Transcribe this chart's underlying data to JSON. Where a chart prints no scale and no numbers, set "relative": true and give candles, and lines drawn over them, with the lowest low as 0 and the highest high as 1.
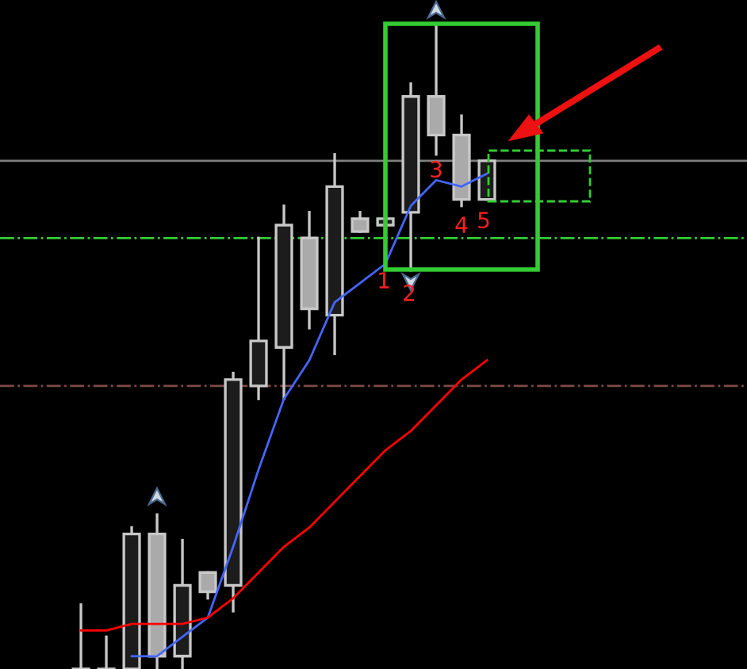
{
  "chart_data": {
    "type": "candlestick",
    "relative": true,
    "categories": [
      null,
      null,
      null,
      null,
      null,
      null,
      null,
      null,
      null,
      null,
      null,
      null,
      null,
      null,
      null,
      null,
      null
    ],
    "ohlc": [
      [
        0,
        0.1,
        0,
        0
      ],
      [
        0,
        0.05,
        0,
        0
      ],
      [
        0,
        0.22,
        0,
        0.21
      ],
      [
        0.21,
        0.24,
        0,
        0.02
      ],
      [
        0.02,
        0.2,
        0,
        0.13
      ],
      [
        0.15,
        0.15,
        0.11,
        0.12
      ],
      [
        0.13,
        0.46,
        0.09,
        0.45
      ],
      [
        0.44,
        0.67,
        0.42,
        0.51
      ],
      [
        0.5,
        0.72,
        0.42,
        0.69
      ],
      [
        0.67,
        0.71,
        0.53,
        0.56
      ],
      [
        0.55,
        0.8,
        0.49,
        0.75
      ],
      [
        0.7,
        0.71,
        0.68,
        0.68
      ],
      [
        0.69,
        0.7,
        0.69,
        0.7
      ],
      [
        0.71,
        0.91,
        0.62,
        0.89
      ],
      [
        0.89,
        1,
        0.8,
        0.83
      ],
      [
        0.83,
        0.86,
        0.72,
        0.73
      ],
      [
        0.73,
        0.79,
        0.73,
        0.79
      ]
    ],
    "series": [
      {
        "type": "line",
        "color": "#4466ff",
        "values": [
          null,
          null,
          0.02,
          0.02,
          0.05,
          0.08,
          0.19,
          0.31,
          0.42,
          0.48,
          0.57,
          0.6,
          0.63,
          0.72,
          0.76,
          0.75,
          0.77
        ]
      },
      {
        "type": "line",
        "color": "#ff0000",
        "values": [
          0.06,
          0.06,
          0.07,
          0.07,
          0.07,
          0.08,
          0.11,
          0.15,
          0.19,
          0.22,
          0.26,
          0.3,
          0.34,
          0.37,
          0.41,
          0.45,
          0.48
        ]
      }
    ],
    "ref_lines": [
      {
        "axis": "y",
        "value": 0.79,
        "color": "#808080",
        "line_style": "solid"
      },
      {
        "axis": "y",
        "value": 0.67,
        "color": "#33cc33",
        "line_style": "dashdot"
      },
      {
        "axis": "y",
        "value": 0.44,
        "color": "#804848",
        "line_style": "dashdot"
      }
    ],
    "annotations": [
      "1",
      "2",
      "3",
      "4",
      "5"
    ]
  }
}
